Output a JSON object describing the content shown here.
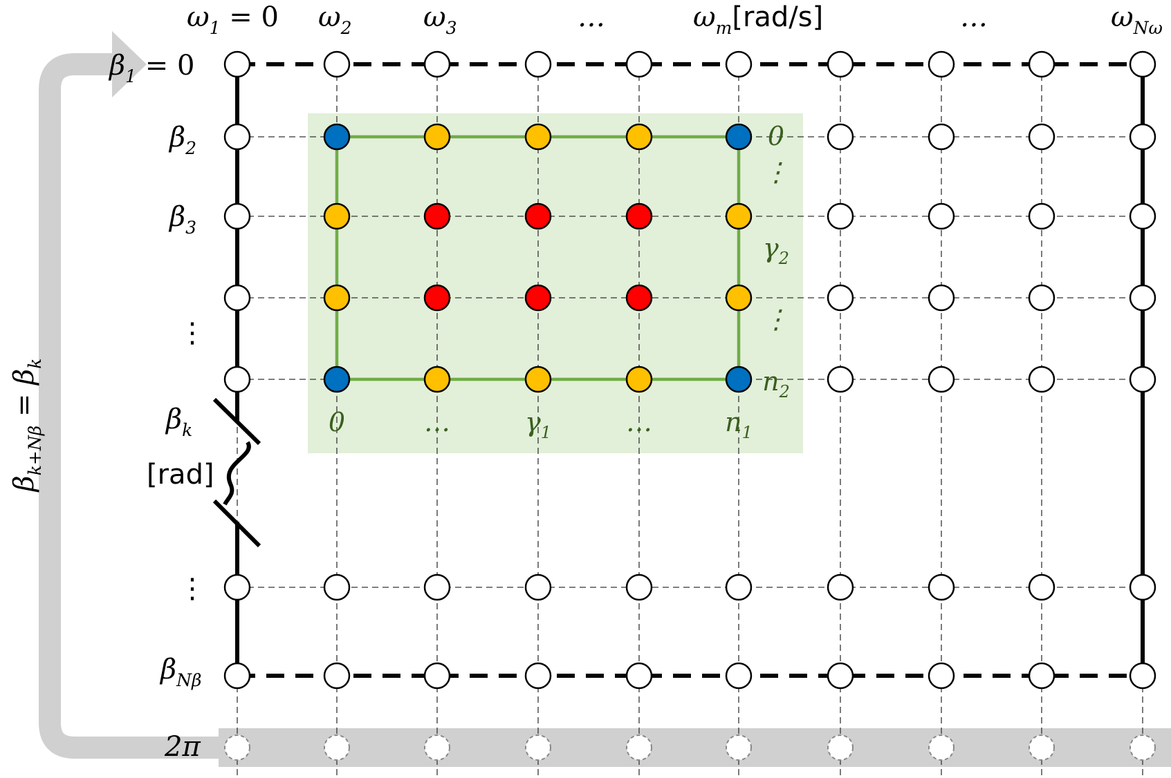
{
  "omega_labels": [
    {
      "base": "ω",
      "sub": "1",
      "suffix": " = 0",
      "unit": ""
    },
    {
      "base": "ω",
      "sub": "2",
      "suffix": "",
      "unit": ""
    },
    {
      "base": "ω",
      "sub": "3",
      "suffix": "",
      "unit": ""
    },
    {
      "base": "…",
      "sub": "",
      "suffix": "",
      "unit": ""
    },
    {
      "base": "ω",
      "sub": "m",
      "suffix": "",
      "unit": "[rad/s]"
    },
    {
      "base": "…",
      "sub": "",
      "suffix": "",
      "unit": ""
    },
    {
      "base": "ω",
      "sub": "Nω",
      "suffix": "",
      "unit": ""
    }
  ],
  "beta_labels": [
    {
      "base": "β",
      "sub": "1",
      "suffix": " = 0"
    },
    {
      "base": "β",
      "sub": "2",
      "suffix": ""
    },
    {
      "base": "β",
      "sub": "3",
      "suffix": ""
    },
    {
      "base": "⋮",
      "sub": "",
      "suffix": ""
    },
    {
      "base": "β",
      "sub": "k",
      "suffix": ""
    },
    {
      "base": "[rad]",
      "sub": "",
      "suffix": ""
    },
    {
      "base": "⋮",
      "sub": "",
      "suffix": ""
    },
    {
      "base": "β",
      "sub": "Nβ",
      "suffix": ""
    }
  ],
  "two_pi_label": "2π",
  "periodicity": {
    "lhs": "β",
    "lhs_sub": "k+Nβ",
    "eq": " = ",
    "rhs": "β",
    "rhs_sub": "k"
  },
  "gamma1_labels": [
    "0",
    "…",
    "γ1",
    "…",
    "n1"
  ],
  "gamma2_labels": [
    "0",
    "⋮",
    "γ2",
    "⋮",
    "n2"
  ],
  "node_colors": {
    "corner": "#0070c0",
    "boundary": "#ffc000",
    "interior": "#ff0000",
    "empty": "#ffffff",
    "periodic": "#ffffff"
  },
  "subgrid_fill": "#e2efd9",
  "subgrid_border": "#70ad47",
  "periodic_band": "#d0d0d0"
}
